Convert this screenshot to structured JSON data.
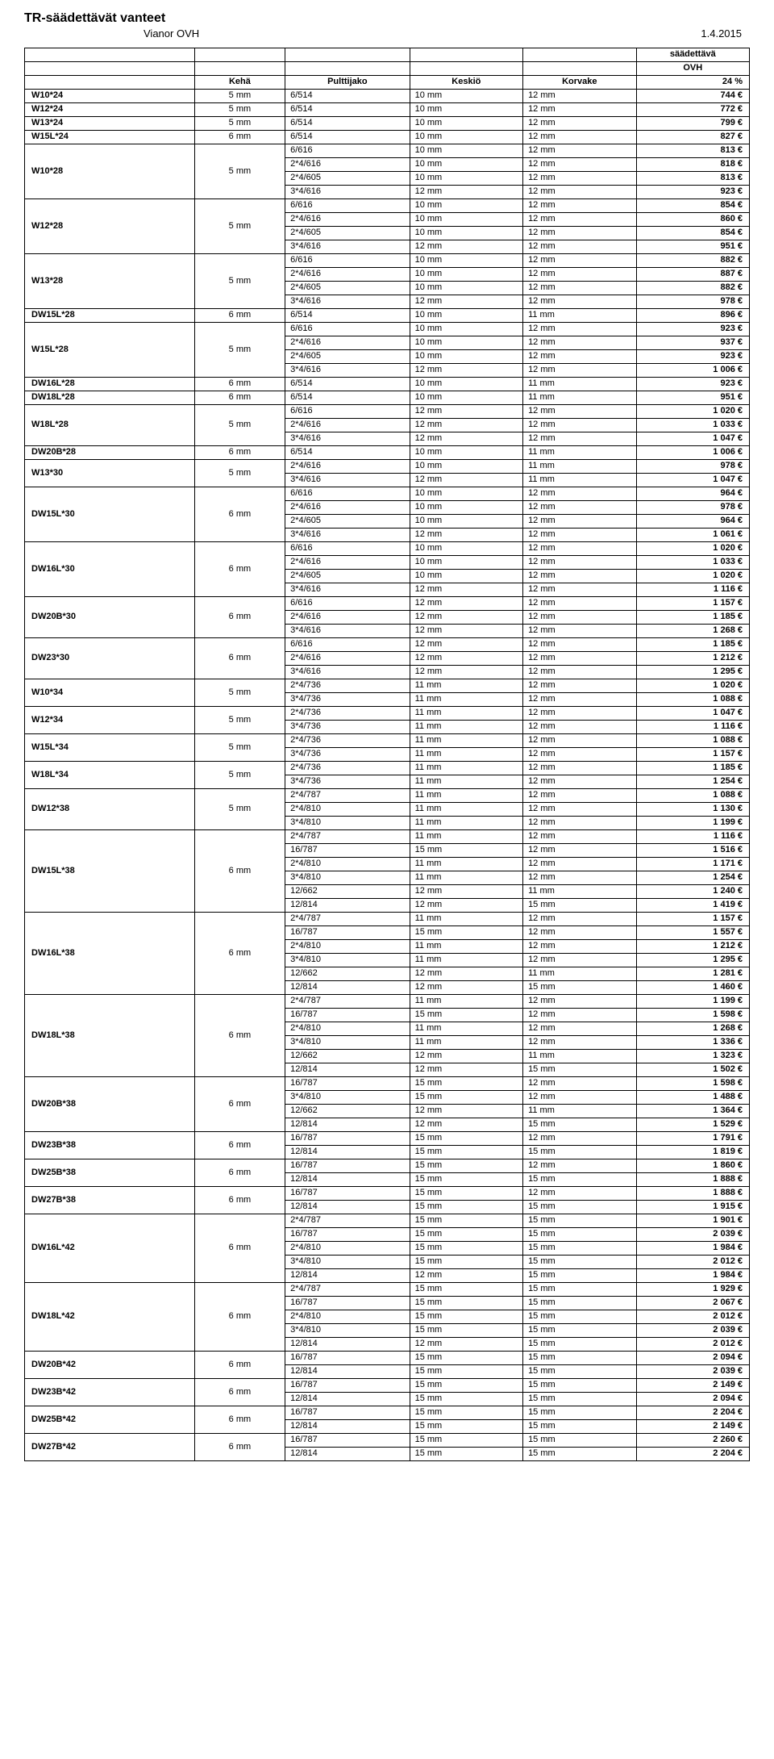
{
  "doc": {
    "title": "TR-säädettävät vanteet",
    "brand": "Vianor OVH",
    "date": "1.4.2015"
  },
  "header": {
    "col_model": "",
    "col_keha": "Kehä",
    "col_pult": "Pulttijako",
    "col_kesk": "Keskiö",
    "col_korv": "Korvake",
    "top_label1": "säädettävä",
    "top_label2": "OVH",
    "discount": "24 %"
  },
  "items": [
    {
      "model": "W10*24",
      "keha": "5 mm",
      "rows": [
        [
          "6/514",
          "10 mm",
          "12 mm",
          "744 €"
        ]
      ]
    },
    {
      "model": "W12*24",
      "keha": "5 mm",
      "rows": [
        [
          "6/514",
          "10 mm",
          "12 mm",
          "772 €"
        ]
      ]
    },
    {
      "model": "W13*24",
      "keha": "5 mm",
      "rows": [
        [
          "6/514",
          "10 mm",
          "12 mm",
          "799 €"
        ]
      ]
    },
    {
      "model": "W15L*24",
      "keha": "6 mm",
      "rows": [
        [
          "6/514",
          "10 mm",
          "12 mm",
          "827 €"
        ]
      ]
    },
    {
      "model": "W10*28",
      "keha": "5 mm",
      "rows": [
        [
          "6/616",
          "10 mm",
          "12 mm",
          "813 €"
        ],
        [
          "2*4/616",
          "10 mm",
          "12 mm",
          "818 €"
        ],
        [
          "2*4/605",
          "10 mm",
          "12 mm",
          "813 €"
        ],
        [
          "3*4/616",
          "12 mm",
          "12 mm",
          "923 €"
        ]
      ]
    },
    {
      "model": "W12*28",
      "keha": "5 mm",
      "rows": [
        [
          "6/616",
          "10 mm",
          "12 mm",
          "854 €"
        ],
        [
          "2*4/616",
          "10 mm",
          "12 mm",
          "860 €"
        ],
        [
          "2*4/605",
          "10 mm",
          "12 mm",
          "854 €"
        ],
        [
          "3*4/616",
          "12 mm",
          "12 mm",
          "951 €"
        ]
      ]
    },
    {
      "model": "W13*28",
      "keha": "5 mm",
      "rows": [
        [
          "6/616",
          "10 mm",
          "12 mm",
          "882 €"
        ],
        [
          "2*4/616",
          "10 mm",
          "12 mm",
          "887 €"
        ],
        [
          "2*4/605",
          "10 mm",
          "12 mm",
          "882 €"
        ],
        [
          "3*4/616",
          "12 mm",
          "12 mm",
          "978 €"
        ]
      ]
    },
    {
      "model": "DW15L*28",
      "keha": "6 mm",
      "rows": [
        [
          "6/514",
          "10 mm",
          "11 mm",
          "896 €"
        ]
      ]
    },
    {
      "model": "W15L*28",
      "keha": "5 mm",
      "rows": [
        [
          "6/616",
          "10 mm",
          "12 mm",
          "923 €"
        ],
        [
          "2*4/616",
          "10 mm",
          "12 mm",
          "937 €"
        ],
        [
          "2*4/605",
          "10 mm",
          "12 mm",
          "923 €"
        ],
        [
          "3*4/616",
          "12 mm",
          "12 mm",
          "1 006 €"
        ]
      ]
    },
    {
      "model": "DW16L*28",
      "keha": "6 mm",
      "rows": [
        [
          "6/514",
          "10 mm",
          "11 mm",
          "923 €"
        ]
      ]
    },
    {
      "model": "DW18L*28",
      "keha": "6 mm",
      "rows": [
        [
          "6/514",
          "10 mm",
          "11 mm",
          "951 €"
        ]
      ]
    },
    {
      "model": "W18L*28",
      "keha": "5 mm",
      "rows": [
        [
          "6/616",
          "12 mm",
          "12 mm",
          "1 020 €"
        ],
        [
          "2*4/616",
          "12 mm",
          "12 mm",
          "1 033 €"
        ],
        [
          "3*4/616",
          "12 mm",
          "12 mm",
          "1 047 €"
        ]
      ]
    },
    {
      "model": "DW20B*28",
      "keha": "6 mm",
      "rows": [
        [
          "6/514",
          "10 mm",
          "11 mm",
          "1 006 €"
        ]
      ]
    },
    {
      "model": "W13*30",
      "keha": "5 mm",
      "rows": [
        [
          "2*4/616",
          "10 mm",
          "11 mm",
          "978 €"
        ],
        [
          "3*4/616",
          "12 mm",
          "11 mm",
          "1 047 €"
        ]
      ]
    },
    {
      "model": "DW15L*30",
      "keha": "6 mm",
      "rows": [
        [
          "6/616",
          "10 mm",
          "12 mm",
          "964 €"
        ],
        [
          "2*4/616",
          "10 mm",
          "12 mm",
          "978 €"
        ],
        [
          "2*4/605",
          "10 mm",
          "12 mm",
          "964 €"
        ],
        [
          "3*4/616",
          "12 mm",
          "12 mm",
          "1 061 €"
        ]
      ]
    },
    {
      "model": "DW16L*30",
      "keha": "6 mm",
      "rows": [
        [
          "6/616",
          "10 mm",
          "12 mm",
          "1 020 €"
        ],
        [
          "2*4/616",
          "10 mm",
          "12 mm",
          "1 033 €"
        ],
        [
          "2*4/605",
          "10 mm",
          "12 mm",
          "1 020 €"
        ],
        [
          "3*4/616",
          "12 mm",
          "12 mm",
          "1 116 €"
        ]
      ]
    },
    {
      "model": "DW20B*30",
      "keha": "6 mm",
      "rows": [
        [
          "6/616",
          "12 mm",
          "12 mm",
          "1 157 €"
        ],
        [
          "2*4/616",
          "12 mm",
          "12 mm",
          "1 185 €"
        ],
        [
          "3*4/616",
          "12 mm",
          "12 mm",
          "1 268 €"
        ]
      ]
    },
    {
      "model": "DW23*30",
      "keha": "6 mm",
      "rows": [
        [
          "6/616",
          "12 mm",
          "12 mm",
          "1 185 €"
        ],
        [
          "2*4/616",
          "12 mm",
          "12 mm",
          "1 212 €"
        ],
        [
          "3*4/616",
          "12 mm",
          "12 mm",
          "1 295 €"
        ]
      ]
    },
    {
      "model": "W10*34",
      "keha": "5 mm",
      "rows": [
        [
          "2*4/736",
          "11 mm",
          "12 mm",
          "1 020 €"
        ],
        [
          "3*4/736",
          "11 mm",
          "12 mm",
          "1 088 €"
        ]
      ]
    },
    {
      "model": "W12*34",
      "keha": "5 mm",
      "rows": [
        [
          "2*4/736",
          "11 mm",
          "12 mm",
          "1 047 €"
        ],
        [
          "3*4/736",
          "11 mm",
          "12 mm",
          "1 116 €"
        ]
      ]
    },
    {
      "model": "W15L*34",
      "keha": "5 mm",
      "rows": [
        [
          "2*4/736",
          "11 mm",
          "12 mm",
          "1 088 €"
        ],
        [
          "3*4/736",
          "11 mm",
          "12 mm",
          "1 157 €"
        ]
      ]
    },
    {
      "model": "W18L*34",
      "keha": "5 mm",
      "rows": [
        [
          "2*4/736",
          "11 mm",
          "12 mm",
          "1 185 €"
        ],
        [
          "3*4/736",
          "11 mm",
          "12 mm",
          "1 254 €"
        ]
      ]
    },
    {
      "model": "DW12*38",
      "keha": "5 mm",
      "rows": [
        [
          "2*4/787",
          "11 mm",
          "12 mm",
          "1 088 €"
        ],
        [
          "2*4/810",
          "11 mm",
          "12 mm",
          "1 130 €"
        ],
        [
          "3*4/810",
          "11 mm",
          "12 mm",
          "1 199 €"
        ]
      ]
    },
    {
      "model": "DW15L*38",
      "keha": "6 mm",
      "rows": [
        [
          "2*4/787",
          "11 mm",
          "12 mm",
          "1 116 €"
        ],
        [
          "16/787",
          "15 mm",
          "12 mm",
          "1 516 €"
        ],
        [
          "2*4/810",
          "11 mm",
          "12 mm",
          "1 171 €"
        ],
        [
          "3*4/810",
          "11 mm",
          "12 mm",
          "1 254 €"
        ],
        [
          "12/662",
          "12 mm",
          "11 mm",
          "1 240 €"
        ],
        [
          "12/814",
          "12 mm",
          "15 mm",
          "1 419 €"
        ]
      ]
    },
    {
      "model": "DW16L*38",
      "keha": "6 mm",
      "rows": [
        [
          "2*4/787",
          "11 mm",
          "12 mm",
          "1 157 €"
        ],
        [
          "16/787",
          "15 mm",
          "12 mm",
          "1 557 €"
        ],
        [
          "2*4/810",
          "11 mm",
          "12 mm",
          "1 212 €"
        ],
        [
          "3*4/810",
          "11 mm",
          "12 mm",
          "1 295 €"
        ],
        [
          "12/662",
          "12 mm",
          "11 mm",
          "1 281 €"
        ],
        [
          "12/814",
          "12 mm",
          "15 mm",
          "1 460 €"
        ]
      ]
    },
    {
      "model": "DW18L*38",
      "keha": "6 mm",
      "rows": [
        [
          "2*4/787",
          "11 mm",
          "12 mm",
          "1 199 €"
        ],
        [
          "16/787",
          "15 mm",
          "12 mm",
          "1 598 €"
        ],
        [
          "2*4/810",
          "11 mm",
          "12 mm",
          "1 268 €"
        ],
        [
          "3*4/810",
          "11 mm",
          "12 mm",
          "1 336 €"
        ],
        [
          "12/662",
          "12 mm",
          "11 mm",
          "1 323 €"
        ],
        [
          "12/814",
          "12 mm",
          "15 mm",
          "1 502 €"
        ]
      ]
    },
    {
      "model": "DW20B*38",
      "keha": "6 mm",
      "rows": [
        [
          "16/787",
          "15 mm",
          "12 mm",
          "1 598 €"
        ],
        [
          "3*4/810",
          "15 mm",
          "12 mm",
          "1 488 €"
        ],
        [
          "12/662",
          "12 mm",
          "11 mm",
          "1 364 €"
        ],
        [
          "12/814",
          "12 mm",
          "15 mm",
          "1 529 €"
        ]
      ]
    },
    {
      "model": "DW23B*38",
      "keha": "6 mm",
      "rows": [
        [
          "16/787",
          "15 mm",
          "12 mm",
          "1 791 €"
        ],
        [
          "12/814",
          "15 mm",
          "15 mm",
          "1 819 €"
        ]
      ]
    },
    {
      "model": "DW25B*38",
      "keha": "6 mm",
      "rows": [
        [
          "16/787",
          "15 mm",
          "12 mm",
          "1 860 €"
        ],
        [
          "12/814",
          "15 mm",
          "15 mm",
          "1 888 €"
        ]
      ]
    },
    {
      "model": "DW27B*38",
      "keha": "6 mm",
      "rows": [
        [
          "16/787",
          "15 mm",
          "12 mm",
          "1 888 €"
        ],
        [
          "12/814",
          "15 mm",
          "15 mm",
          "1 915 €"
        ]
      ]
    },
    {
      "model": "DW16L*42",
      "keha": "6 mm",
      "rows": [
        [
          "2*4/787",
          "15 mm",
          "15 mm",
          "1 901 €"
        ],
        [
          "16/787",
          "15 mm",
          "15 mm",
          "2 039 €"
        ],
        [
          "2*4/810",
          "15 mm",
          "15 mm",
          "1 984 €"
        ],
        [
          "3*4/810",
          "15 mm",
          "15 mm",
          "2 012 €"
        ],
        [
          "12/814",
          "12 mm",
          "15 mm",
          "1 984 €"
        ]
      ]
    },
    {
      "model": "DW18L*42",
      "keha": "6 mm",
      "rows": [
        [
          "2*4/787",
          "15 mm",
          "15 mm",
          "1 929 €"
        ],
        [
          "16/787",
          "15 mm",
          "15 mm",
          "2 067 €"
        ],
        [
          "2*4/810",
          "15 mm",
          "15 mm",
          "2 012 €"
        ],
        [
          "3*4/810",
          "15 mm",
          "15 mm",
          "2 039 €"
        ],
        [
          "12/814",
          "12 mm",
          "15 mm",
          "2 012 €"
        ]
      ]
    },
    {
      "model": "DW20B*42",
      "keha": "6 mm",
      "rows": [
        [
          "16/787",
          "15 mm",
          "15 mm",
          "2 094 €"
        ],
        [
          "12/814",
          "15 mm",
          "15 mm",
          "2 039 €"
        ]
      ]
    },
    {
      "model": "DW23B*42",
      "keha": "6 mm",
      "rows": [
        [
          "16/787",
          "15 mm",
          "15 mm",
          "2 149 €"
        ],
        [
          "12/814",
          "15 mm",
          "15 mm",
          "2 094 €"
        ]
      ]
    },
    {
      "model": "DW25B*42",
      "keha": "6 mm",
      "rows": [
        [
          "16/787",
          "15 mm",
          "15 mm",
          "2 204 €"
        ],
        [
          "12/814",
          "15 mm",
          "15 mm",
          "2 149 €"
        ]
      ]
    },
    {
      "model": "DW27B*42",
      "keha": "6 mm",
      "rows": [
        [
          "16/787",
          "15 mm",
          "15 mm",
          "2 260 €"
        ],
        [
          "12/814",
          "15 mm",
          "15 mm",
          "2 204 €"
        ]
      ]
    }
  ]
}
